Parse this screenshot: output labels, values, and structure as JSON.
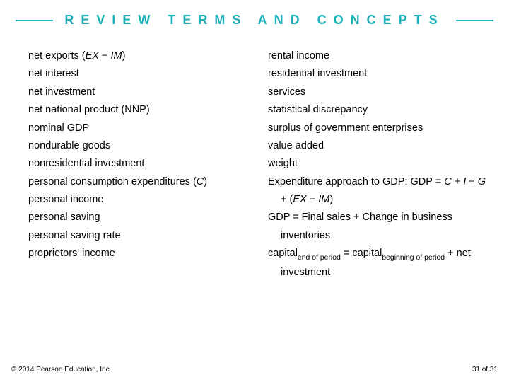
{
  "accent_color": "#1bb0b8",
  "header": {
    "title": "REVIEW TERMS AND CONCEPTS"
  },
  "left_column": [
    "net exports (EX − IM)",
    "net interest",
    "net investment",
    "net national product (NNP)",
    "nominal GDP",
    "nondurable goods",
    "nonresidential investment",
    "personal consumption expenditures (C)",
    "personal income",
    "personal saving",
    "personal saving rate",
    "proprietors' income"
  ],
  "right_column": {
    "terms": [
      "rental income",
      "residential investment",
      "services",
      "statistical discrepancy",
      "surplus of government enterprises",
      "value added",
      "weight"
    ],
    "formulas": {
      "f1a": "Expenditure approach to GDP: GDP = ",
      "f1a_italic": "C",
      "f1b_pre": " + ",
      "f1b_i1": "I",
      "f1b_mid1": " + ",
      "f1b_i2": "G",
      "f1b_mid2": " + (",
      "f1b_i3": "EX",
      "f1b_minus": " − ",
      "f1b_i4": "IM",
      "f1b_close": ")",
      "f2a": "GDP = Final sales + Change in",
      "f2b": "business inventories",
      "f3_cap1": "capital",
      "f3_sub1": "end of period",
      "f3_eq": " = ",
      "f3_cap2": "capital",
      "f3_sub2": "beginning of period",
      "f3_plus": " +",
      "f3b": "net investment"
    }
  },
  "footer": {
    "copyright": "© 2014 Pearson Education, Inc.",
    "page": "31 of 31"
  }
}
